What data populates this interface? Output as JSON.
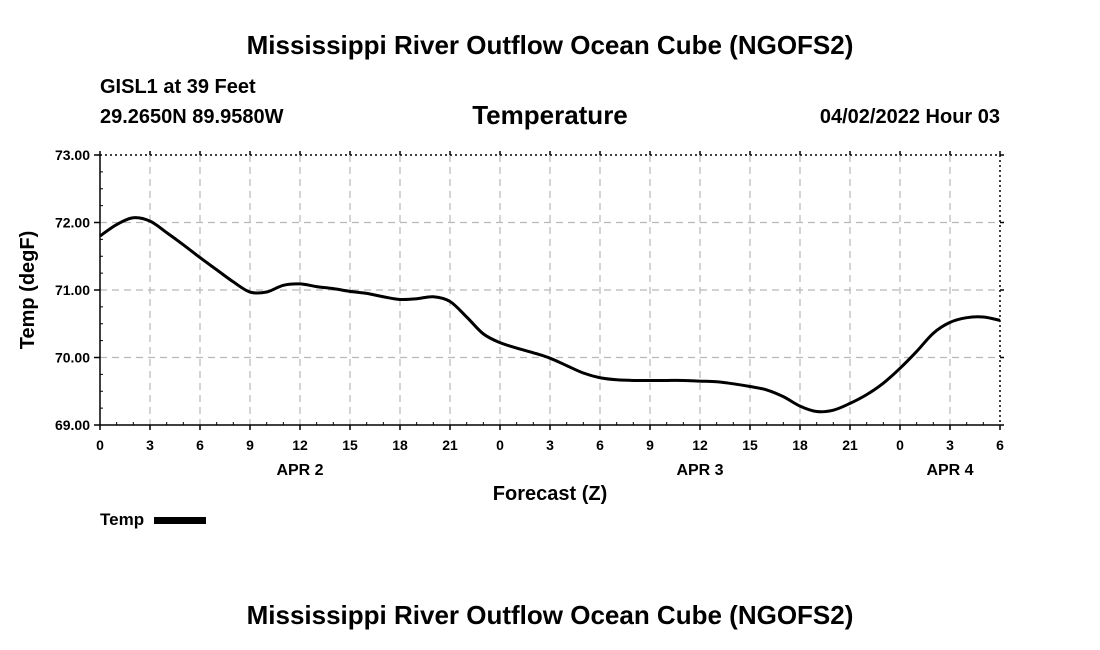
{
  "header": {
    "title": "Mississippi River Outflow Ocean Cube (NGOFS2)",
    "station": "GISL1 at 39 Feet",
    "coords": "29.2650N  89.9580W",
    "subtitle": "Temperature",
    "datetime": "04/02/2022 Hour 03"
  },
  "footer": {
    "title": "Mississippi River Outflow Ocean Cube (NGOFS2)"
  },
  "legend": {
    "label": "Temp"
  },
  "chart_data": {
    "type": "line",
    "title": "Temperature",
    "xlabel": "Forecast (Z)",
    "ylabel": "Temp (degF)",
    "xlim": [
      0,
      54
    ],
    "ylim": [
      69.0,
      73.0
    ],
    "grid": true,
    "legend_position": "bottom-left",
    "x_ticks": [
      0,
      3,
      6,
      9,
      12,
      15,
      18,
      21,
      24,
      27,
      30,
      33,
      36,
      39,
      42,
      45,
      48,
      51,
      54
    ],
    "x_tick_labels": [
      "0",
      "3",
      "6",
      "9",
      "12",
      "15",
      "18",
      "21",
      "0",
      "3",
      "6",
      "9",
      "12",
      "15",
      "18",
      "21",
      "0",
      "3",
      "6"
    ],
    "day_labels": [
      {
        "x": 12,
        "label": "APR 2"
      },
      {
        "x": 36,
        "label": "APR 3"
      },
      {
        "x": 51,
        "label": "APR 4"
      }
    ],
    "y_ticks": [
      69.0,
      70.0,
      71.0,
      72.0,
      73.0
    ],
    "y_tick_labels": [
      "69.00",
      "70.00",
      "71.00",
      "72.00",
      "73.00"
    ],
    "series": [
      {
        "name": "Temp",
        "color": "#000000",
        "x": [
          0,
          1,
          2,
          3,
          4,
          5,
          6,
          7,
          8,
          9,
          10,
          11,
          12,
          13,
          14,
          15,
          16,
          17,
          18,
          19,
          20,
          21,
          22,
          23,
          24,
          25,
          26,
          27,
          28,
          29,
          30,
          31,
          32,
          33,
          34,
          35,
          36,
          37,
          38,
          39,
          40,
          41,
          42,
          43,
          44,
          45,
          46,
          47,
          48,
          49,
          50,
          51,
          52,
          53,
          54
        ],
        "y": [
          71.8,
          71.97,
          72.07,
          72.02,
          71.85,
          71.67,
          71.48,
          71.3,
          71.12,
          70.97,
          70.97,
          71.07,
          71.09,
          71.05,
          71.02,
          70.98,
          70.95,
          70.9,
          70.86,
          70.87,
          70.9,
          70.83,
          70.6,
          70.35,
          70.22,
          70.14,
          70.07,
          69.99,
          69.88,
          69.77,
          69.7,
          69.67,
          69.66,
          69.66,
          69.66,
          69.66,
          69.65,
          69.64,
          69.61,
          69.57,
          69.52,
          69.42,
          69.28,
          69.2,
          69.22,
          69.32,
          69.45,
          69.62,
          69.84,
          70.09,
          70.36,
          70.52,
          70.59,
          70.6,
          70.55
        ]
      }
    ]
  }
}
